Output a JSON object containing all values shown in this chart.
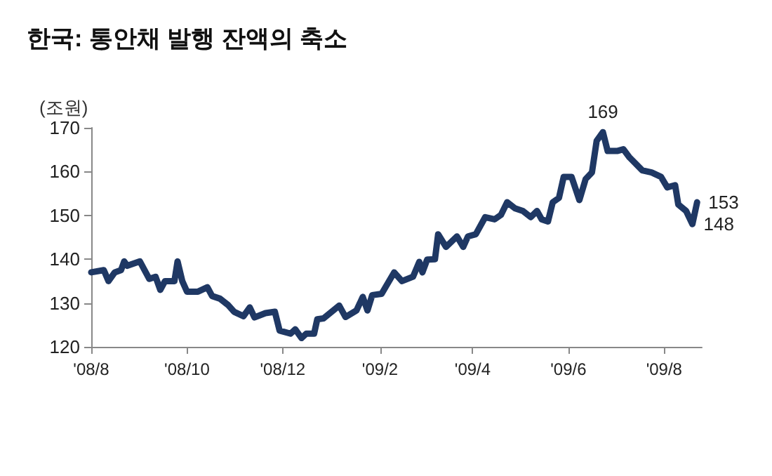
{
  "chart_data": {
    "type": "line",
    "title": "한국: 통안채 발행 잔액의 축소",
    "ylabel": "(조원)",
    "x": [
      "2008-08-01",
      "2008-08-09",
      "2008-08-12",
      "2008-08-16",
      "2008-08-20",
      "2008-08-22",
      "2008-08-24",
      "2008-09-01",
      "2008-09-04",
      "2008-09-07",
      "2008-09-11",
      "2008-09-14",
      "2008-09-17",
      "2008-09-23",
      "2008-09-25",
      "2008-09-28",
      "2008-10-01",
      "2008-10-08",
      "2008-10-14",
      "2008-10-17",
      "2008-10-22",
      "2008-10-27",
      "2008-10-31",
      "2008-11-06",
      "2008-11-10",
      "2008-11-13",
      "2008-11-20",
      "2008-11-26",
      "2008-11-29",
      "2008-12-06",
      "2008-12-09",
      "2008-12-13",
      "2008-12-16",
      "2008-12-21",
      "2008-12-23",
      "2008-12-27",
      "2009-01-06",
      "2009-01-10",
      "2009-01-17",
      "2009-01-21",
      "2009-01-24",
      "2009-01-27",
      "2009-02-02",
      "2009-02-10",
      "2009-02-15",
      "2009-02-22",
      "2009-02-26",
      "2009-02-28",
      "2009-03-03",
      "2009-03-08",
      "2009-03-10",
      "2009-03-15",
      "2009-03-22",
      "2009-03-26",
      "2009-03-29",
      "2009-04-03",
      "2009-04-09",
      "2009-04-15",
      "2009-04-19",
      "2009-04-23",
      "2009-04-28",
      "2009-05-03",
      "2009-05-08",
      "2009-05-12",
      "2009-05-15",
      "2009-05-19",
      "2009-05-22",
      "2009-05-26",
      "2009-05-29",
      "2009-06-03",
      "2009-06-08",
      "2009-06-12",
      "2009-06-16",
      "2009-06-19",
      "2009-06-23",
      "2009-06-26",
      "2009-07-02",
      "2009-07-06",
      "2009-07-10",
      "2009-07-18",
      "2009-07-24",
      "2009-07-30",
      "2009-08-03",
      "2009-08-08",
      "2009-08-10",
      "2009-08-15",
      "2009-08-19",
      "2009-08-22"
    ],
    "series": [
      {
        "color": "#1f3864",
        "values": [
          137,
          137.5,
          135,
          137,
          137.5,
          139.5,
          138.5,
          139.5,
          137.5,
          135.5,
          136,
          133,
          135,
          135,
          139.5,
          135,
          132.6,
          132.6,
          133.6,
          131.6,
          131,
          129.6,
          128,
          127,
          129,
          126.7,
          127.7,
          128,
          123.7,
          123,
          124,
          122,
          123,
          123,
          126.3,
          126.5,
          129.4,
          126.8,
          128.3,
          131.4,
          128.3,
          131.8,
          132.1,
          137,
          135,
          136,
          139.4,
          137,
          139.9,
          140,
          145.7,
          142.8,
          145.2,
          142.8,
          145.2,
          145.7,
          149.6,
          149.1,
          150.1,
          153,
          151.6,
          151,
          149.6,
          151,
          149.1,
          148.6,
          153,
          154,
          158.8,
          158.8,
          153.5,
          158.3,
          159.8,
          167,
          169,
          164.7,
          164.7,
          165.1,
          163.2,
          160.3,
          159.8,
          158.8,
          156.4,
          156.9,
          152.5,
          151,
          148,
          153
        ]
      }
    ],
    "xlim": [
      "2008-08-01",
      "2009-08-25"
    ],
    "xticks": [
      {
        "value": "2008-08",
        "label": "'08/8"
      },
      {
        "value": "2008-10",
        "label": "'08/10"
      },
      {
        "value": "2008-12",
        "label": "'08/12"
      },
      {
        "value": "2009-02",
        "label": "'09/2"
      },
      {
        "value": "2009-04",
        "label": "'09/4"
      },
      {
        "value": "2009-06",
        "label": "'09/6"
      },
      {
        "value": "2009-08",
        "label": "'09/8"
      }
    ],
    "ylim": [
      120,
      170
    ],
    "yticks": [
      120,
      130,
      140,
      150,
      160,
      170
    ],
    "grid": false,
    "marker": "none",
    "line_style": "solid",
    "annotations": [
      {
        "text": "169",
        "x": "2009-06-23",
        "y": 169
      },
      {
        "text": "153",
        "x": "2009-08-22",
        "y": 153
      },
      {
        "text": "148",
        "x": "2009-08-19",
        "y": 148
      }
    ]
  }
}
